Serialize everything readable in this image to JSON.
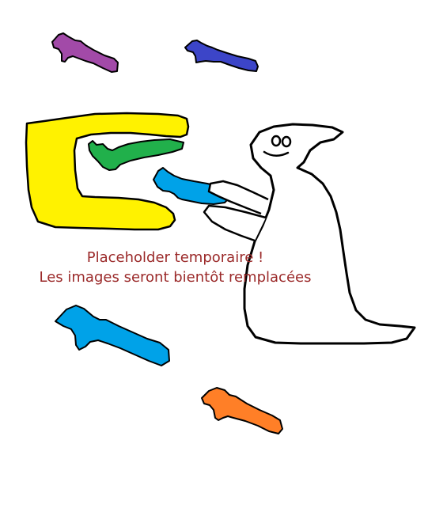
{
  "placeholder": {
    "line1": "Placeholder temporaire !",
    "line2": "Les images seront bientôt remplacées",
    "text_color": "#9b2a2a"
  },
  "sprites": [
    {
      "name": "purple-key-sprite",
      "icon": "key-icon",
      "color": "#a24aa8"
    },
    {
      "name": "indigo-key-sprite",
      "icon": "key-icon",
      "color": "#3c45c8"
    },
    {
      "name": "yellow-c-tray-sprite",
      "icon": "c-shape-icon",
      "color": "#fff200"
    },
    {
      "name": "green-key-sprite",
      "icon": "key-icon",
      "color": "#21b04b"
    },
    {
      "name": "held-blue-key-sprite",
      "icon": "key-icon",
      "color": "#00a2e8"
    },
    {
      "name": "ghost-character",
      "icon": "ghost-icon",
      "color": "#ffffff"
    },
    {
      "name": "blue-key-sprite",
      "icon": "key-icon",
      "color": "#00a2e8"
    },
    {
      "name": "orange-key-sprite",
      "icon": "key-icon",
      "color": "#ff7f27"
    }
  ],
  "outline_color": "#000000",
  "background_color": "#ffffff"
}
